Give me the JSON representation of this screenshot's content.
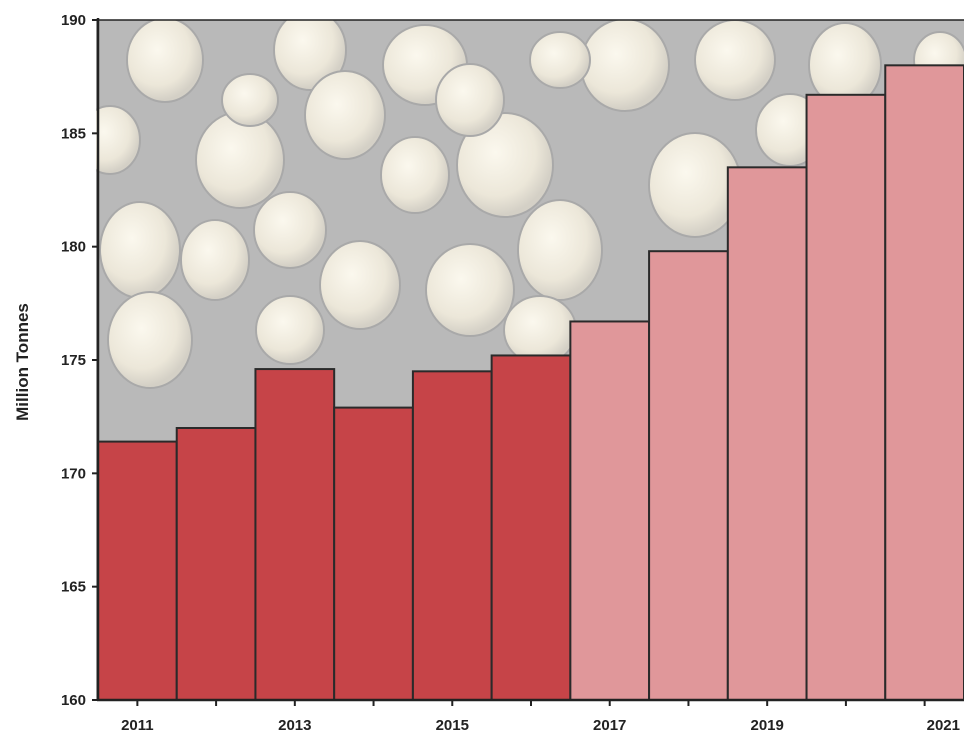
{
  "chart_data": {
    "type": "bar",
    "ylabel": "Million Tonnes",
    "xlabel": "",
    "ylim": [
      160,
      190
    ],
    "yticks": [
      160,
      165,
      170,
      175,
      180,
      185,
      190
    ],
    "categories": [
      "2011",
      "2012",
      "2013",
      "2014",
      "2015",
      "2016",
      "2017",
      "2018",
      "2019",
      "2020",
      "2021"
    ],
    "xtick_labels": [
      "2011",
      "",
      "2013",
      "",
      "2015",
      "",
      "2017",
      "",
      "2019",
      "",
      "2021"
    ],
    "values": [
      171.4,
      172.0,
      174.6,
      172.9,
      174.5,
      175.2,
      176.7,
      179.8,
      183.5,
      186.7,
      188.0
    ],
    "bar_colors": [
      "#c64448",
      "#c64448",
      "#c64448",
      "#c64448",
      "#c64448",
      "#c64448",
      "#e0979a",
      "#e0979a",
      "#e0979a",
      "#e0979a",
      "#e0979a"
    ],
    "grid": false,
    "background": "photo of white pellets"
  }
}
